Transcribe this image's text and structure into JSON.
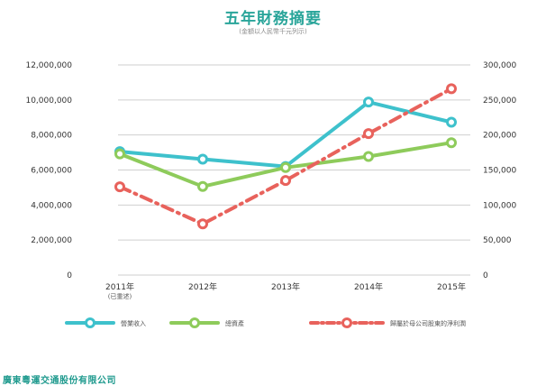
{
  "title": "五年財務摘要",
  "subtitle": "(金額以人民幣千元列示)",
  "company": "廣東粵運交通股份有限公司",
  "chart_data": {
    "type": "line",
    "categories": [
      "2011年",
      "2012年",
      "2013年",
      "2014年",
      "2015年"
    ],
    "category_notes": [
      "(已重述)",
      "",
      "",
      "",
      ""
    ],
    "left_axis": {
      "ylim": [
        0,
        12000000
      ],
      "ticks": [
        0,
        2000000,
        4000000,
        6000000,
        8000000,
        10000000,
        12000000
      ],
      "tick_labels": [
        "0",
        "2,000,000",
        "4,000,000",
        "6,000,000",
        "8,000,000",
        "10,000,000",
        "12,000,000"
      ]
    },
    "right_axis": {
      "ylim": [
        0,
        300000
      ],
      "ticks": [
        0,
        50000,
        100000,
        150000,
        200000,
        250000,
        300000
      ],
      "tick_labels": [
        "0",
        "50,000",
        "100,000",
        "150,000",
        "200,000",
        "250,000",
        "300,000"
      ]
    },
    "grid": true,
    "legend_position": "bottom",
    "series": [
      {
        "name": "營業收入",
        "axis": "left",
        "color": "#3ec1cc",
        "style": "solid",
        "values": [
          7050000,
          6620000,
          6200000,
          9880000,
          8730000
        ]
      },
      {
        "name": "總資產",
        "axis": "left",
        "color": "#8ecb5b",
        "style": "solid",
        "values": [
          6920000,
          5060000,
          6140000,
          6770000,
          7560000
        ]
      },
      {
        "name": "歸屬於母公司股東的淨利潤",
        "axis": "right",
        "color": "#e8625c",
        "style": "dashdot",
        "values": [
          126000,
          73000,
          135000,
          202000,
          266000
        ]
      }
    ]
  }
}
